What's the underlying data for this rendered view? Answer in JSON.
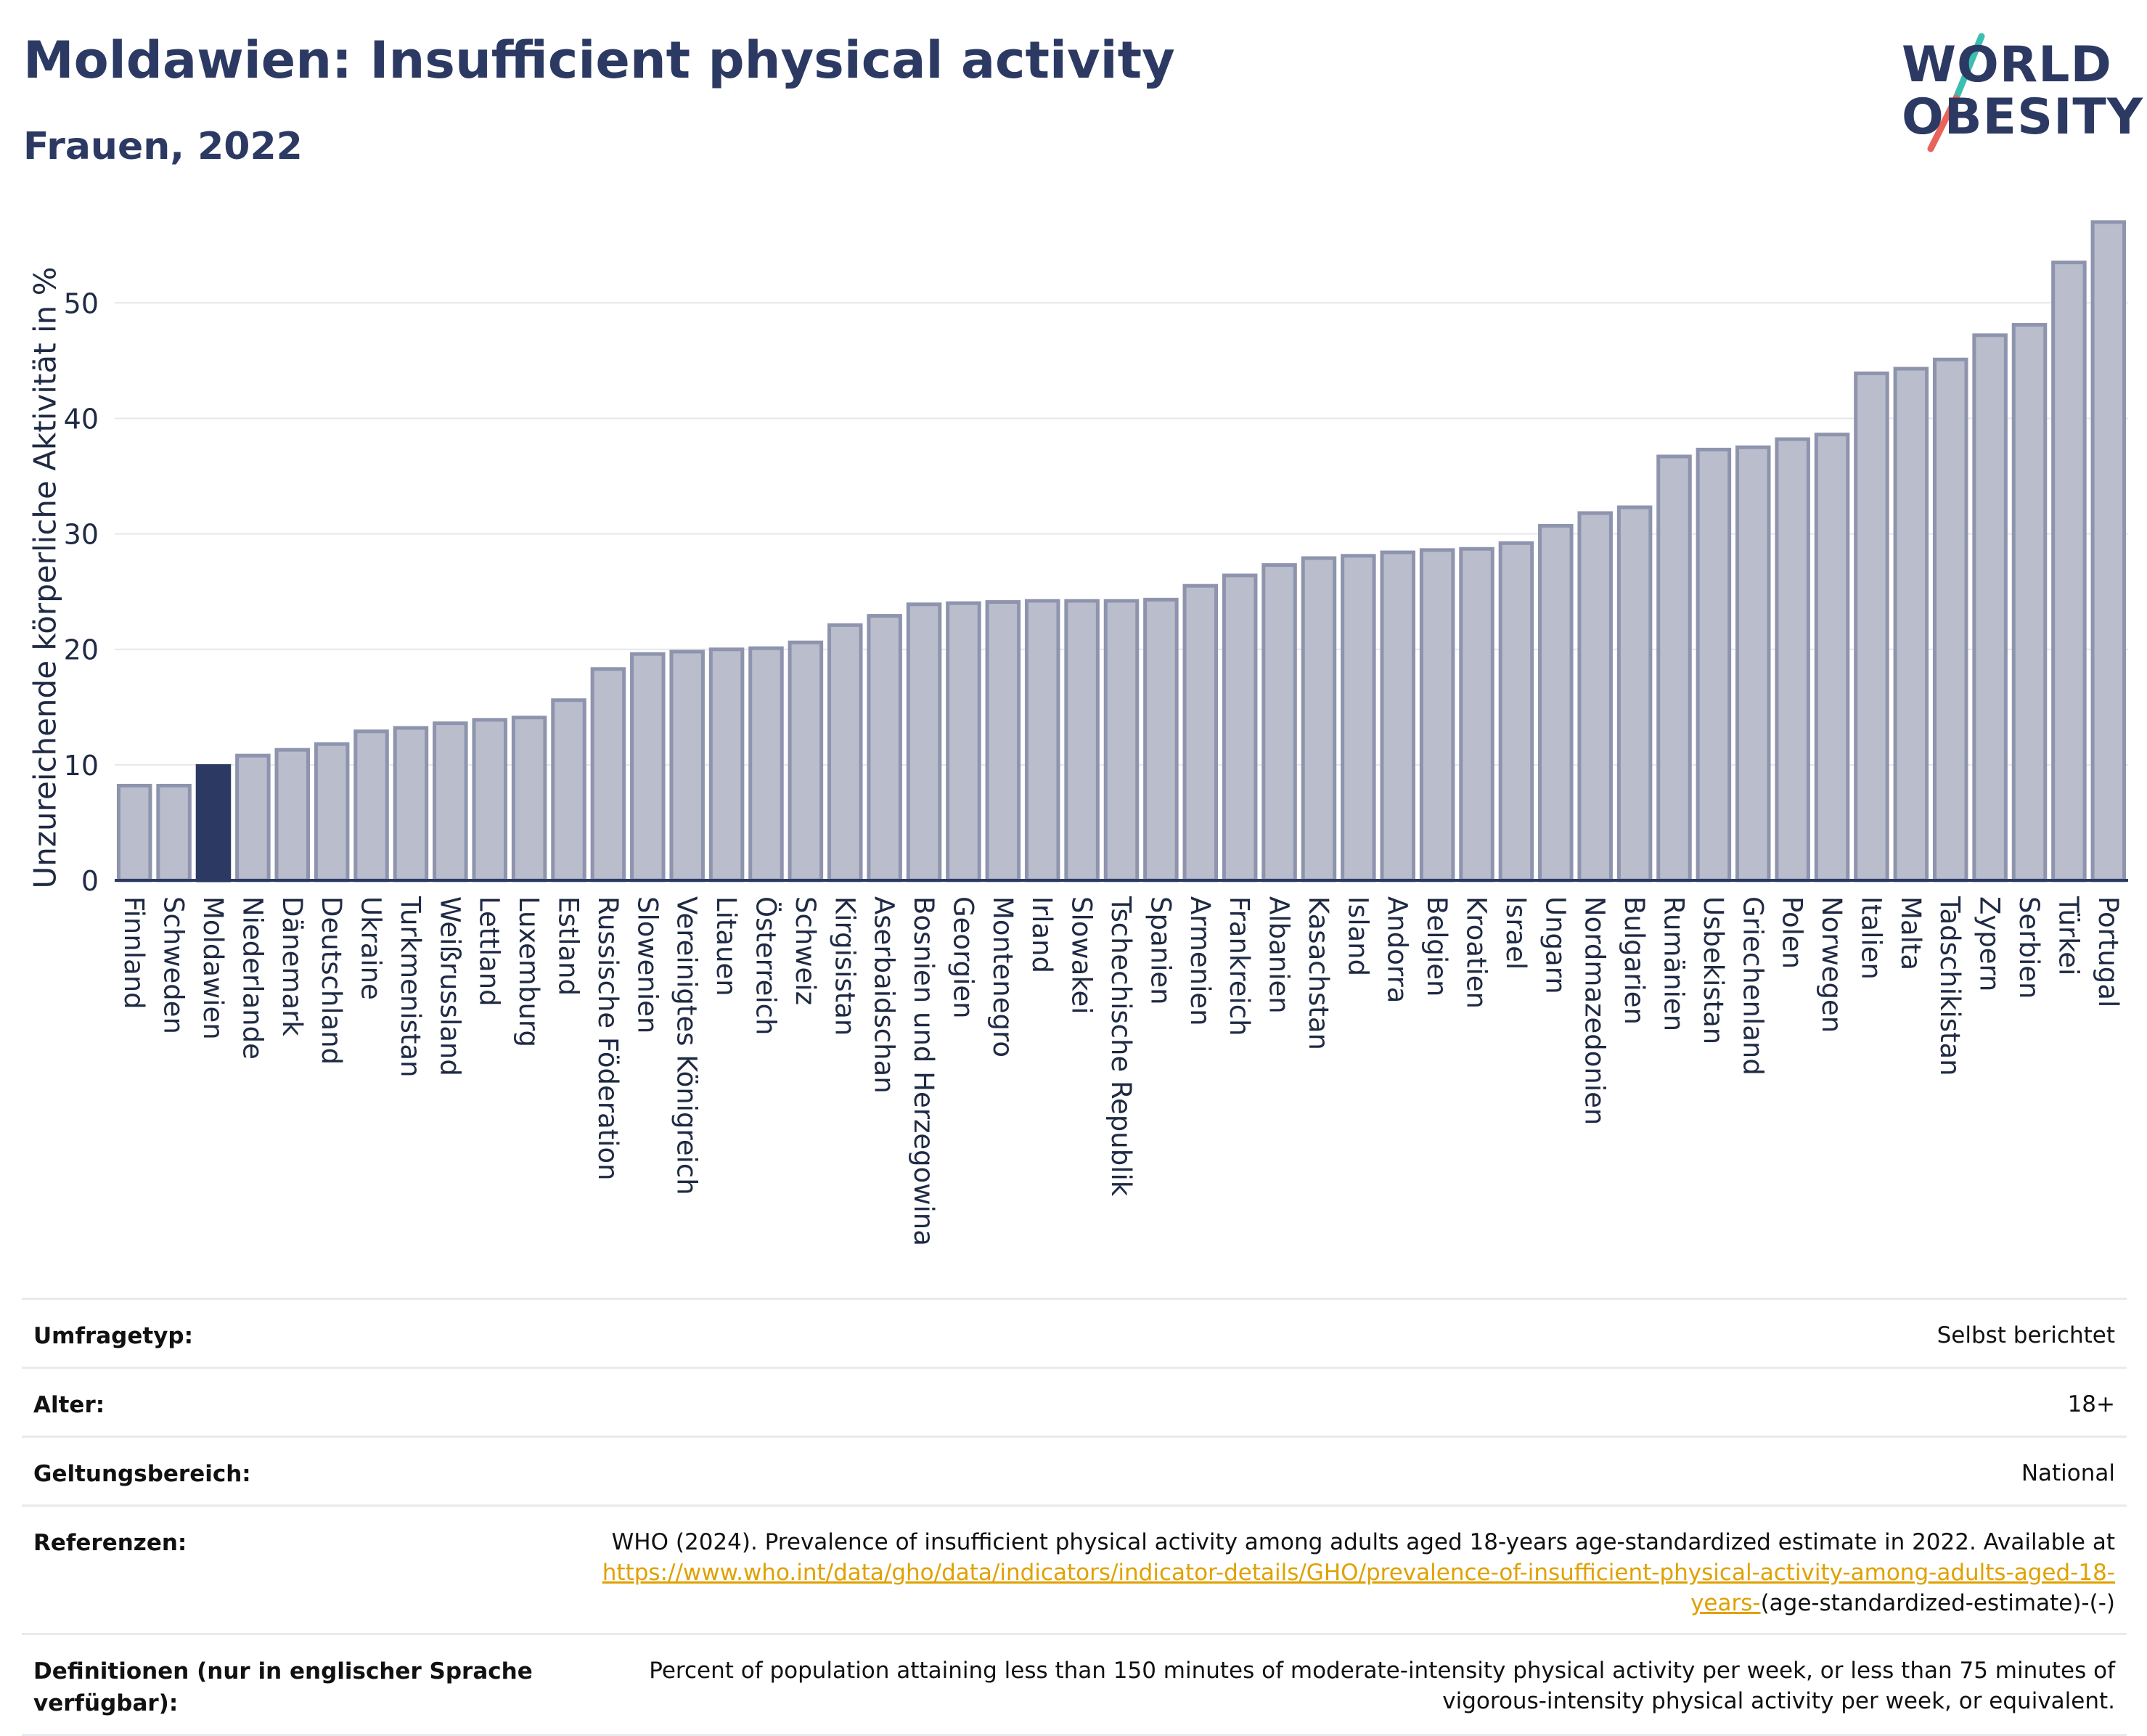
{
  "header": {
    "title": "Moldawien: Insufficient physical activity",
    "subtitle": "Frauen, 2022"
  },
  "logo": {
    "line1": "WORLD",
    "line2": "OBESITY",
    "slash_color_top": "#3bbfb0",
    "slash_color_bottom": "#e8645a"
  },
  "colors": {
    "bar": "#b9bdcc",
    "bar_border": "#8e94ad",
    "highlight": "#2c3a63",
    "grid": "#e5e7eb",
    "axis": "#2c3a63"
  },
  "chart_data": {
    "type": "bar",
    "ylabel": "Unzureichende körperliche Aktivität in %",
    "xlabel": "",
    "ylim": [
      0,
      58
    ],
    "yticks": [
      0,
      10,
      20,
      30,
      40,
      50
    ],
    "grid": true,
    "highlight": "Moldawien",
    "categories": [
      "Finnland",
      "Schweden",
      "Moldawien",
      "Niederlande",
      "Dänemark",
      "Deutschland",
      "Ukraine",
      "Turkmenistan",
      "Weißrussland",
      "Lettland",
      "Luxemburg",
      "Estland",
      "Russische Föderation",
      "Slowenien",
      "Vereinigtes Königreich",
      "Litauen",
      "Österreich",
      "Schweiz",
      "Kirgisistan",
      "Aserbaidschan",
      "Bosnien und Herzegowina",
      "Georgien",
      "Montenegro",
      "Irland",
      "Slowakei",
      "Tschechische Republik",
      "Spanien",
      "Armenien",
      "Frankreich",
      "Albanien",
      "Kasachstan",
      "Island",
      "Andorra",
      "Belgien",
      "Kroatien",
      "Israel",
      "Ungarn",
      "Nordmazedonien",
      "Bulgarien",
      "Rumänien",
      "Usbekistan",
      "Griechenland",
      "Polen",
      "Norwegen",
      "Italien",
      "Malta",
      "Tadschikistan",
      "Zypern",
      "Serbien",
      "Türkei",
      "Portugal"
    ],
    "values": [
      8.2,
      8.2,
      9.9,
      10.8,
      11.3,
      11.8,
      12.9,
      13.2,
      13.6,
      13.9,
      14.1,
      15.6,
      18.3,
      19.6,
      19.8,
      20.0,
      20.1,
      20.6,
      22.1,
      22.9,
      23.9,
      24.0,
      24.1,
      24.2,
      24.2,
      24.2,
      24.3,
      25.5,
      26.4,
      27.3,
      27.9,
      28.1,
      28.4,
      28.6,
      28.7,
      29.2,
      30.7,
      31.8,
      32.3,
      36.7,
      37.3,
      37.5,
      38.2,
      38.6,
      43.9,
      44.3,
      45.1,
      47.2,
      48.1,
      53.5,
      57.0
    ]
  },
  "info_table": [
    {
      "label": "Umfragetyp:",
      "value": "Selbst berichtet"
    },
    {
      "label": "Alter:",
      "value": "18+"
    },
    {
      "label": "Geltungsbereich:",
      "value": "National"
    },
    {
      "label": "Referenzen:",
      "value_prefix": "WHO (2024). Prevalence of insufficient physical activity among adults aged 18-years age-standardized estimate in 2022. Available at",
      "link": "https://www.who.int/data/gho/data/indicators/indicator-details/GHO/prevalence-of-insufficient-physical-activity-among-adults-aged-18-years-",
      "value_suffix": "(age-standardized-estimate)-(-)"
    },
    {
      "label": "Definitionen (nur in englischer Sprache verfügbar):",
      "value": "Percent of population attaining less than 150 minutes of moderate-intensity physical activity per week, or less than 75 minutes of vigorous-intensity physical activity per week, or equivalent."
    }
  ]
}
